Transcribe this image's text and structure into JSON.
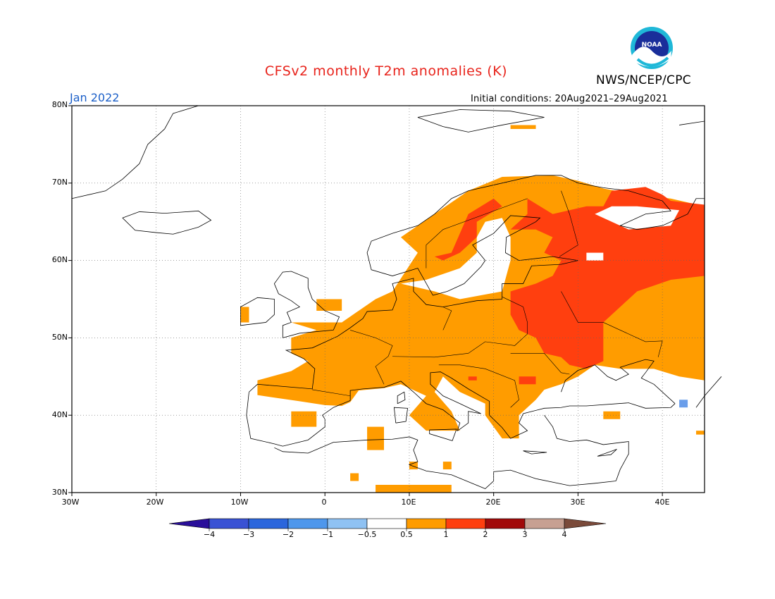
{
  "title": "CFSv2 monthly T2m anomalies (K)",
  "org": "NWS/NCEP/CPC",
  "logo_text": "NOAA",
  "valid_month": "Jan 2022",
  "initial_conditions": "Initial conditions: 20Aug2021–29Aug2021",
  "map": {
    "lon_range": [
      -30,
      45
    ],
    "lat_range": [
      30,
      80
    ],
    "lat_ticks": [
      "30N",
      "40N",
      "50N",
      "60N",
      "70N",
      "80N"
    ],
    "lon_ticks": [
      "30W",
      "20W",
      "10W",
      "0",
      "10E",
      "20E",
      "30E",
      "40E"
    ],
    "gridlines": true
  },
  "colorbar": {
    "labels": [
      "−4",
      "−3",
      "−2",
      "−1",
      "−0.5",
      "0.5",
      "1",
      "2",
      "3",
      "4"
    ],
    "colors": [
      "#2a0f9a",
      "#3a52d4",
      "#2b66dc",
      "#4e97ec",
      "#8fc2f3",
      "#ffffff",
      "#ff9c00",
      "#ff3f0f",
      "#a10a0a",
      "#c7a092",
      "#7a4a3a"
    ]
  },
  "colors": {
    "warm1": "#ff9c00",
    "warm2": "#ff3f0f",
    "cool": "#6a9eea"
  }
}
